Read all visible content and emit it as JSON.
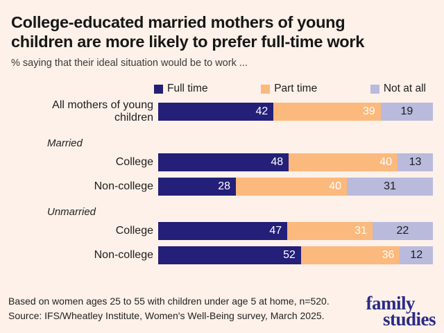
{
  "header": {
    "title": "College-educated married mothers of young children are more likely to prefer full-time work",
    "subtitle": "% saying that their ideal situation would be to work ..."
  },
  "legend": [
    {
      "id": "full_time",
      "label": "Full time"
    },
    {
      "id": "part_time",
      "label": "Part time"
    },
    {
      "id": "not_at_all",
      "label": "Not at all"
    }
  ],
  "colors": {
    "full_time": "#241f78",
    "part_time": "#fcb97d",
    "not_at_all": "#b9badc",
    "background": "#fdf1e9",
    "logo": "#2b2b85"
  },
  "chart_data": {
    "type": "bar",
    "orientation": "horizontal",
    "stacked": true,
    "unit": "%",
    "xlim": [
      0,
      100
    ],
    "grid": false,
    "legend_position": "top",
    "title": "College-educated married mothers of young children are more likely to prefer full-time work",
    "subtitle": "% saying that their ideal situation would be to work ...",
    "series_names": [
      "Full time",
      "Part time",
      "Not at all"
    ],
    "sections": [
      {
        "group": "",
        "rows": [
          {
            "label": "All mothers of young children",
            "values": [
              42,
              39,
              19
            ]
          }
        ]
      },
      {
        "group": "Married",
        "rows": [
          {
            "label": "College",
            "values": [
              48,
              40,
              13
            ]
          },
          {
            "label": "Non-college",
            "values": [
              28,
              40,
              31
            ]
          }
        ]
      },
      {
        "group": "Unmarried",
        "rows": [
          {
            "label": "College",
            "values": [
              47,
              31,
              22
            ]
          },
          {
            "label": "Non-college",
            "values": [
              52,
              36,
              12
            ]
          }
        ]
      }
    ]
  },
  "footer": {
    "note": "Based on women ages 25 to 55 with children under age 5 at home, n=520.",
    "source": "Source: IFS/Wheatley Institute, Women's Well-Being survey, March 2025.",
    "logo_line1": "family",
    "logo_line2": "studies"
  }
}
